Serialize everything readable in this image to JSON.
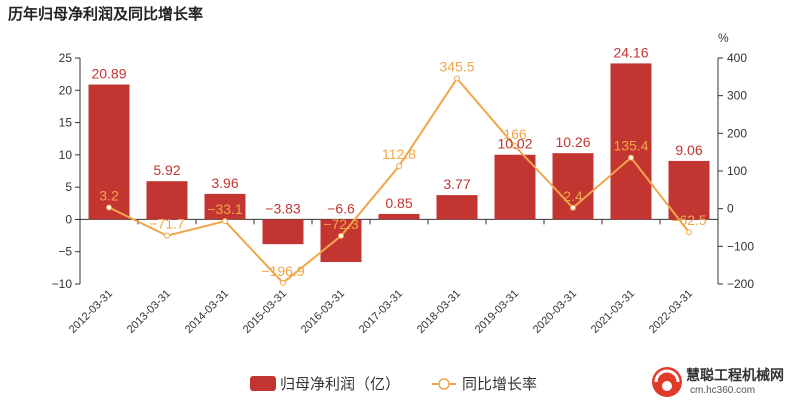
{
  "chart_data": {
    "type": "bar",
    "title": "历年归母净利润及同比增长率",
    "categories": [
      "2012-03-31",
      "2013-03-31",
      "2014-03-31",
      "2015-03-31",
      "2016-03-31",
      "2017-03-31",
      "2018-03-31",
      "2019-03-31",
      "2020-03-31",
      "2021-03-31",
      "2022-03-31"
    ],
    "series": [
      {
        "name": "归母净利润（亿）",
        "type": "bar",
        "axis": "left",
        "values": [
          20.89,
          5.92,
          3.96,
          -3.83,
          -6.6,
          0.85,
          3.77,
          10.02,
          10.26,
          24.16,
          9.06
        ],
        "labels": [
          "20.89",
          "5.92",
          "3.96",
          "−3.83",
          "−6.6",
          "0.85",
          "3.77",
          "10.02",
          "10.26",
          "24.16",
          "9.06"
        ]
      },
      {
        "name": "同比增长率",
        "type": "line",
        "axis": "right",
        "values": [
          3.2,
          -71.7,
          -33.1,
          -196.9,
          -72.3,
          112.8,
          345.5,
          166,
          2.4,
          135.4,
          -62.5
        ],
        "labels": [
          "3.2",
          "−71.7",
          "−33.1",
          "−196.9",
          "−72.3",
          "112.8",
          "345.5",
          "166",
          "2.4",
          "135.4",
          "−62.5"
        ]
      }
    ],
    "y_left": {
      "ylim": [
        -10,
        25
      ],
      "ticks": [
        -10,
        -5,
        0,
        5,
        10,
        15,
        20,
        25
      ],
      "tick_labels": [
        "−10",
        "−5",
        "0",
        "5",
        "10",
        "15",
        "20",
        "25"
      ]
    },
    "y_right": {
      "ylim": [
        -200,
        400
      ],
      "ticks": [
        -200,
        -100,
        0,
        100,
        200,
        300,
        400
      ],
      "tick_labels": [
        "−200",
        "−100",
        "0",
        "100",
        "200",
        "300",
        "400"
      ],
      "unit": "%"
    },
    "legend": {
      "position": "bottom",
      "items": [
        "归母净利润（亿）",
        "同比增长率"
      ]
    },
    "grid": false,
    "colors": {
      "bar": "#c23531",
      "line": "#f0a64a"
    }
  },
  "watermark": {
    "text": "慧聪工程机械网",
    "url": "cm.hc360.com"
  }
}
